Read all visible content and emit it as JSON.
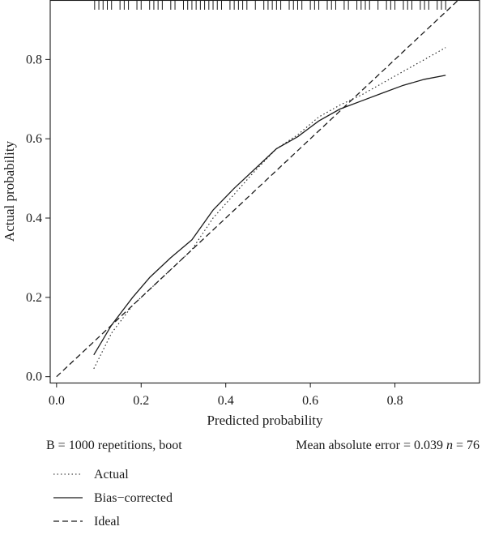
{
  "chart_data": {
    "type": "line",
    "xlabel": "Predicted probability",
    "ylabel": "Actual probability",
    "xlim": [
      -0.015,
      1.0
    ],
    "ylim": [
      -0.015,
      0.95
    ],
    "x_ticks": [
      0.0,
      0.2,
      0.4,
      0.6,
      0.8
    ],
    "x_tick_labels": [
      "0.0",
      "0.2",
      "0.4",
      "0.6",
      "0.8"
    ],
    "y_ticks": [
      0.0,
      0.2,
      0.4,
      0.6,
      0.8
    ],
    "y_tick_labels": [
      "0.0",
      "0.2",
      "0.4",
      "0.6",
      "0.8"
    ],
    "grid": false,
    "legend_position": "bottom",
    "series": [
      {
        "name": "Actual",
        "style": "dotted",
        "color": "#1a1a1a",
        "x": [
          0.088,
          0.13,
          0.18,
          0.22,
          0.27,
          0.32,
          0.37,
          0.42,
          0.47,
          0.52,
          0.57,
          0.62,
          0.67,
          0.72,
          0.77,
          0.82,
          0.87,
          0.92
        ],
        "y": [
          0.02,
          0.11,
          0.18,
          0.22,
          0.27,
          0.32,
          0.4,
          0.46,
          0.52,
          0.575,
          0.61,
          0.655,
          0.685,
          0.71,
          0.74,
          0.77,
          0.8,
          0.83
        ]
      },
      {
        "name": "Bias−corrected",
        "style": "solid",
        "color": "#1a1a1a",
        "x": [
          0.088,
          0.13,
          0.18,
          0.22,
          0.27,
          0.32,
          0.37,
          0.42,
          0.47,
          0.52,
          0.57,
          0.62,
          0.67,
          0.72,
          0.77,
          0.82,
          0.87,
          0.92
        ],
        "y": [
          0.055,
          0.13,
          0.2,
          0.25,
          0.3,
          0.345,
          0.42,
          0.475,
          0.525,
          0.575,
          0.605,
          0.645,
          0.675,
          0.695,
          0.715,
          0.735,
          0.75,
          0.76
        ]
      },
      {
        "name": "Ideal",
        "style": "dashed",
        "color": "#1a1a1a",
        "x": [
          0.0,
          1.0
        ],
        "y": [
          0.0,
          1.0
        ]
      }
    ],
    "rug_x": [
      0.09,
      0.1,
      0.11,
      0.12,
      0.13,
      0.15,
      0.16,
      0.17,
      0.19,
      0.2,
      0.22,
      0.23,
      0.24,
      0.25,
      0.27,
      0.28,
      0.3,
      0.31,
      0.32,
      0.33,
      0.34,
      0.35,
      0.36,
      0.37,
      0.38,
      0.39,
      0.41,
      0.42,
      0.43,
      0.44,
      0.45,
      0.47,
      0.49,
      0.5,
      0.51,
      0.52,
      0.53,
      0.55,
      0.56,
      0.57,
      0.58,
      0.6,
      0.61,
      0.62,
      0.64,
      0.65,
      0.66,
      0.68,
      0.69,
      0.71,
      0.72,
      0.73,
      0.74,
      0.76,
      0.78,
      0.79,
      0.8,
      0.82,
      0.83,
      0.84,
      0.86,
      0.87,
      0.88,
      0.9,
      0.91,
      0.92
    ],
    "annotations": {
      "left": "B = 1000 repetitions, boot",
      "right_prefix": "Mean absolute error = 0.039",
      "n_symbol": "n",
      "n_value": "= 76"
    }
  }
}
